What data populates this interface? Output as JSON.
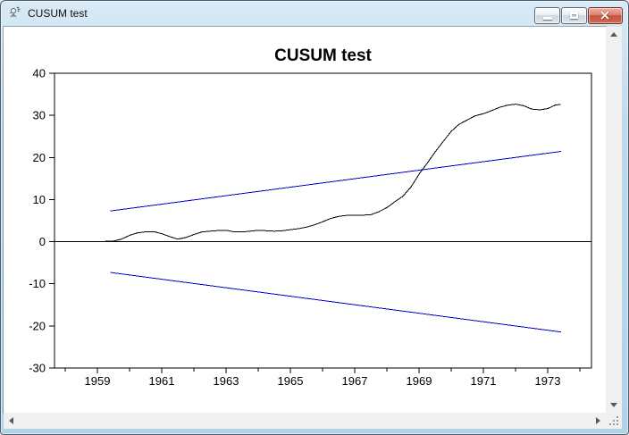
{
  "window": {
    "title": "CUSUM test",
    "icon": "gretl-sketch-icon",
    "controls": [
      "minimize",
      "maximize",
      "close"
    ]
  },
  "scrollbars": {
    "vertical": [
      "arrow-up",
      "arrow-down"
    ],
    "horizontal": [
      "arrow-left",
      "arrow-right"
    ],
    "resize_grip": true
  },
  "colors": {
    "bound_line_blue": "#0000cc",
    "series_line_black": "#000000",
    "titlebar_blue": "#bed9ec",
    "close_button_red": "#c6523c",
    "client_background": "#ffffff",
    "scrollbar_track": "#f0f0f0"
  },
  "chart_data": {
    "type": "line",
    "title": "CUSUM test",
    "xlabel": "",
    "ylabel": "",
    "xlim": [
      1957.667,
      1974.361
    ],
    "ylim": [
      -30,
      40
    ],
    "yticks": [
      -30,
      -20,
      -10,
      0,
      10,
      20,
      30,
      40
    ],
    "xticks_major": [
      1959,
      1961,
      1963,
      1965,
      1967,
      1969,
      1971,
      1973
    ],
    "xticks_minor": [
      1958,
      1960,
      1962,
      1964,
      1966,
      1968,
      1970,
      1972,
      1974
    ],
    "grid": false,
    "zero_line": 0,
    "legend": "none",
    "series": [
      {
        "name": "CUSUM",
        "color": "#000000",
        "points": [
          [
            1959.25,
            0.15
          ],
          [
            1959.5,
            0.15
          ],
          [
            1959.75,
            0.6
          ],
          [
            1960.0,
            1.5
          ],
          [
            1960.25,
            2.1
          ],
          [
            1960.5,
            2.35
          ],
          [
            1960.75,
            2.4
          ],
          [
            1961.0,
            1.9
          ],
          [
            1961.25,
            1.2
          ],
          [
            1961.5,
            0.6
          ],
          [
            1961.75,
            1.0
          ],
          [
            1962.0,
            1.7
          ],
          [
            1962.25,
            2.3
          ],
          [
            1962.5,
            2.5
          ],
          [
            1962.75,
            2.65
          ],
          [
            1963.0,
            2.7
          ],
          [
            1963.25,
            2.35
          ],
          [
            1963.5,
            2.3
          ],
          [
            1963.75,
            2.5
          ],
          [
            1964.0,
            2.7
          ],
          [
            1964.25,
            2.6
          ],
          [
            1964.5,
            2.5
          ],
          [
            1964.75,
            2.6
          ],
          [
            1965.0,
            2.85
          ],
          [
            1965.25,
            3.1
          ],
          [
            1965.5,
            3.45
          ],
          [
            1965.75,
            4.0
          ],
          [
            1966.0,
            4.7
          ],
          [
            1966.25,
            5.5
          ],
          [
            1966.5,
            6.0
          ],
          [
            1966.75,
            6.25
          ],
          [
            1967.0,
            6.3
          ],
          [
            1967.25,
            6.3
          ],
          [
            1967.5,
            6.4
          ],
          [
            1967.75,
            7.1
          ],
          [
            1968.0,
            8.1
          ],
          [
            1968.25,
            9.5
          ],
          [
            1968.5,
            10.8
          ],
          [
            1968.75,
            13.0
          ],
          [
            1969.0,
            16.0
          ],
          [
            1969.25,
            18.6
          ],
          [
            1969.5,
            21.3
          ],
          [
            1969.75,
            23.8
          ],
          [
            1970.0,
            26.2
          ],
          [
            1970.25,
            27.9
          ],
          [
            1970.5,
            28.9
          ],
          [
            1970.75,
            29.9
          ],
          [
            1971.0,
            30.4
          ],
          [
            1971.25,
            31.1
          ],
          [
            1971.5,
            31.9
          ],
          [
            1971.75,
            32.4
          ],
          [
            1972.0,
            32.65
          ],
          [
            1972.25,
            32.3
          ],
          [
            1972.5,
            31.5
          ],
          [
            1972.75,
            31.3
          ],
          [
            1973.0,
            31.6
          ],
          [
            1973.25,
            32.5
          ],
          [
            1973.4,
            32.55
          ]
        ]
      },
      {
        "name": "upper significance bound",
        "color": "#0000cc",
        "points": [
          [
            1959.4,
            7.3
          ],
          [
            1973.42,
            21.45
          ]
        ]
      },
      {
        "name": "lower significance bound",
        "color": "#0000cc",
        "points": [
          [
            1959.4,
            -7.3
          ],
          [
            1973.42,
            -21.45
          ]
        ]
      }
    ]
  }
}
